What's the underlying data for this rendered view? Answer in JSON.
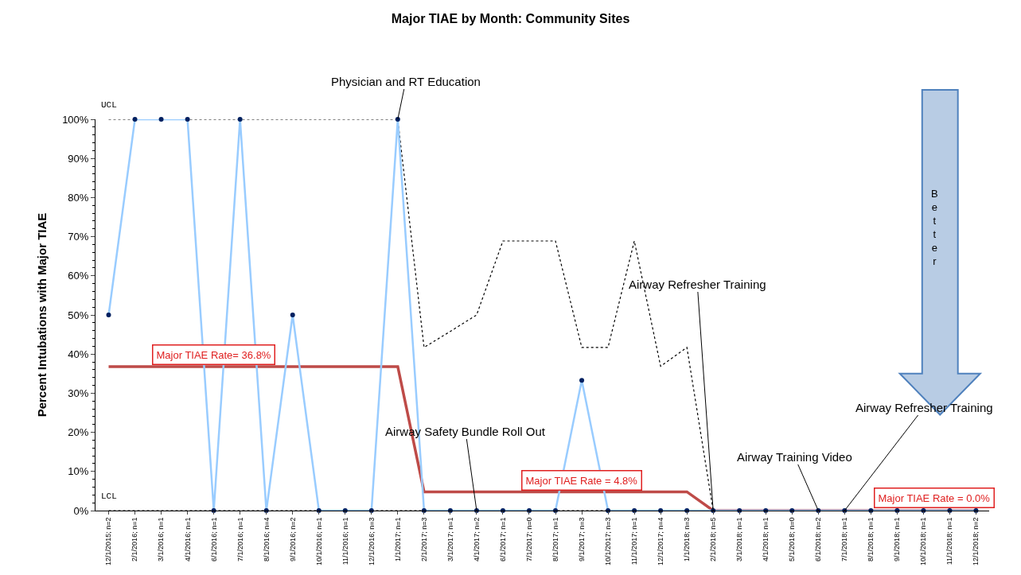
{
  "chart_data": {
    "type": "line",
    "title": "Major TIAE by Month: Community Sites",
    "ylabel": "Percent Intubations with Major TIAE",
    "categories": [
      "12/1/2015; n=2",
      "2/1/2016; n=1",
      "3/1/2016; n=1",
      "4/1/2016; n=1",
      "6/1/2016; n=1",
      "7/1/2016; n=1",
      "8/1/2016; n=4",
      "9/1/2016; n=2",
      "10/1/2016; n=1",
      "11/1/2016; n=1",
      "12/1/2016; n=3",
      "1/1/2017; n=1",
      "2/1/2017; n=3",
      "3/1/2017; n=1",
      "4/1/2017; n=2",
      "6/1/2017; n=1",
      "7/1/2017; n=0",
      "8/1/2017; n=1",
      "9/1/2017; n=3",
      "10/1/2017; n=3",
      "11/1/2017; n=1",
      "12/1/2017; n=4",
      "1/1/2018; n=3",
      "2/1/2018; n=5",
      "3/1/2018; n=1",
      "4/1/2018; n=1",
      "5/1/2018; n=0",
      "6/1/2018; n=2",
      "7/1/2018; n=1",
      "8/1/2018; n=1",
      "9/1/2018; n=1",
      "10/1/2018; n=1",
      "11/1/2018; n=1",
      "12/1/2018; n=2"
    ],
    "series": [
      {
        "color": "#000000",
        "line_style": "dotted",
        "marker": "none",
        "values": [
          0,
          0,
          0,
          0,
          0,
          0,
          0,
          0,
          0,
          0,
          0,
          0,
          0,
          0,
          0,
          0,
          0,
          0,
          0,
          0,
          0,
          0,
          0,
          0,
          0,
          0,
          0,
          0,
          0,
          0,
          0,
          0,
          0,
          0
        ]
      },
      {
        "color": "#000000",
        "line_style": "dotted",
        "marker": "none",
        "values": [
          100,
          100,
          100,
          100,
          100,
          100,
          100,
          100,
          100,
          100,
          100,
          100,
          41.7,
          45.8,
          50,
          68.9,
          68.9,
          68.9,
          41.7,
          41.7,
          68.9,
          36.9,
          41.7,
          0,
          0,
          0,
          0,
          0,
          0,
          0,
          0,
          0,
          0,
          0
        ]
      },
      {
        "color": "#be4b48",
        "line_style": "solid",
        "marker": "none",
        "values": [
          36.8,
          36.8,
          36.8,
          36.8,
          36.8,
          36.8,
          36.8,
          36.8,
          36.8,
          36.8,
          36.8,
          36.8,
          4.8,
          4.8,
          4.8,
          4.8,
          4.8,
          4.8,
          4.8,
          4.8,
          4.8,
          4.8,
          4.8,
          0,
          0,
          0,
          0,
          0,
          0,
          0,
          0,
          0,
          0,
          0
        ]
      },
      {
        "color": "#99ccff",
        "line_style": "solid",
        "marker": "circle",
        "colors": [
          "#002060",
          "#002060",
          "#002060",
          "#002060",
          "#002060",
          "#002060",
          "#002060",
          "#002060",
          "#002060",
          "#002060",
          "#002060",
          "#002060",
          "#002060",
          "#002060",
          "#002060",
          "#002060",
          "#002060",
          "#002060",
          "#002060",
          "#002060",
          "#002060",
          "#002060",
          "#002060",
          "#002060",
          "#002060",
          "#002060",
          "#002060",
          "#002060",
          "#002060",
          "#002060",
          "#002060",
          "#002060",
          "#002060",
          "#002060"
        ],
        "values": [
          50,
          100,
          100,
          100,
          0,
          100,
          0,
          50,
          0,
          0,
          0,
          100,
          0,
          0,
          0,
          0,
          0,
          0,
          33.3,
          0,
          0,
          0,
          0,
          0,
          0,
          0,
          0,
          0,
          0,
          0,
          0,
          0,
          0,
          0
        ]
      }
    ],
    "ylim": [
      0,
      100
    ],
    "yticks": [
      {
        "value": 0,
        "label": "0%"
      },
      {
        "value": 10,
        "label": "10%"
      },
      {
        "value": 20,
        "label": "20%"
      },
      {
        "value": 30,
        "label": "30%"
      },
      {
        "value": 40,
        "label": "40%"
      },
      {
        "value": 50,
        "label": "50%"
      },
      {
        "value": 60,
        "label": "60%"
      },
      {
        "value": 70,
        "label": "70%"
      },
      {
        "value": 80,
        "label": "80%"
      },
      {
        "value": 90,
        "label": "90%"
      },
      {
        "value": 100,
        "label": "100%"
      }
    ],
    "annotations": [
      {
        "text": "Physician and RT Education",
        "x": "1/1/2017; n=1",
        "y": 100
      },
      {
        "text": "Airway Safety Bundle Roll Out",
        "x": "4/1/2017; n=2",
        "y": 0
      },
      {
        "text": "Airway Refresher Training",
        "x": "7/1/2018; n=1",
        "y": 0
      },
      {
        "text": "Airway Training Video",
        "x": "6/1/2018; n=2",
        "y": 0
      },
      {
        "text": "Airway Refresher Training",
        "x": "2/1/2018; n=5",
        "y": 0
      },
      {
        "text": "Major TIAE Rate= 36.8%",
        "x": "6/1/2016; n=1",
        "y": 36.8
      },
      {
        "text": "Major TIAE Rate = 4.8%",
        "x": "9/1/2017; n=3",
        "y": 4.8
      },
      {
        "text": "Major TIAE Rate = 0.0%",
        "x": "10/1/2018; n=1",
        "y": 0
      },
      {
        "text": "UCL",
        "x": "12/1/2015; n=2",
        "y": 100
      },
      {
        "text": "LCL",
        "x": "12/1/2015; n=2",
        "y": 0
      },
      "Better"
    ]
  }
}
